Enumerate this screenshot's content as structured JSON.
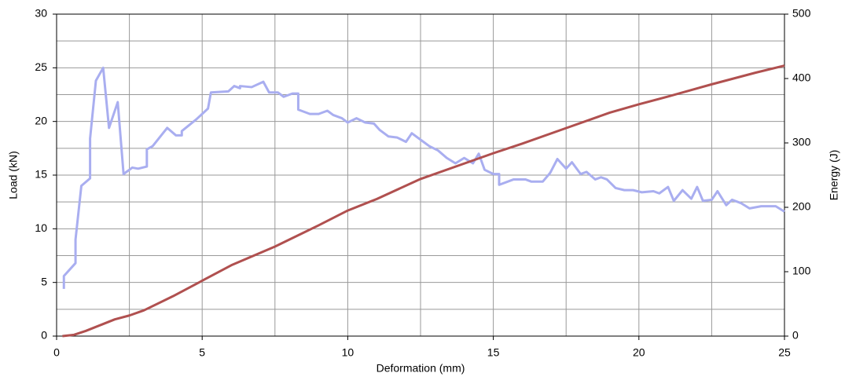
{
  "chart_data": {
    "type": "line",
    "xlabel": "Deformation (mm)",
    "ylabel": "Load (kN)",
    "y2label": "Energy (J)",
    "xlim": [
      0,
      25
    ],
    "xticks": [
      0,
      5,
      10,
      15,
      20,
      25
    ],
    "ylim": [
      0,
      30
    ],
    "yticks": [
      0,
      5,
      10,
      15,
      20,
      25,
      30
    ],
    "y2lim": [
      0,
      500
    ],
    "y2ticks": [
      0,
      100,
      200,
      300,
      400,
      500
    ],
    "grid": true,
    "xminor": [
      2.5,
      7.5,
      12.5,
      17.5,
      22.5
    ],
    "yminor": [
      2.5,
      7.5,
      12.5,
      17.5,
      22.5,
      27.5
    ],
    "series": [
      {
        "name": "Load",
        "color": "#a9aef0",
        "axis": "y",
        "x": [
          0.25,
          0.25,
          0.65,
          0.65,
          0.85,
          1.15,
          1.15,
          1.35,
          1.6,
          1.8,
          2.1,
          2.3,
          2.6,
          2.8,
          3.1,
          3.1,
          3.3,
          3.8,
          4.1,
          4.3,
          4.3,
          4.8,
          5.2,
          5.3,
          5.9,
          6.1,
          6.3,
          6.3,
          6.7,
          7.1,
          7.3,
          7.6,
          7.8,
          8.1,
          8.3,
          8.3,
          8.7,
          9.0,
          9.3,
          9.5,
          9.8,
          10.0,
          10.3,
          10.6,
          10.9,
          11.1,
          11.4,
          11.7,
          12.0,
          12.2,
          12.6,
          12.8,
          13.1,
          13.4,
          13.7,
          14.0,
          14.3,
          14.5,
          14.7,
          15.0,
          15.2,
          15.2,
          15.7,
          16.1,
          16.3,
          16.7,
          16.95,
          17.2,
          17.5,
          17.7,
          18.0,
          18.2,
          18.5,
          18.7,
          18.9,
          19.2,
          19.5,
          19.8,
          20.1,
          20.5,
          20.7,
          21.0,
          21.2,
          21.5,
          21.8,
          22.0,
          22.2,
          22.5,
          22.7,
          23.0,
          23.2,
          23.5,
          23.8,
          24.2,
          24.7,
          25.0
        ],
        "values": [
          4.4,
          5.6,
          6.8,
          9.0,
          14.0,
          14.7,
          18.4,
          23.8,
          25.0,
          19.4,
          21.8,
          15.1,
          15.7,
          15.6,
          15.8,
          17.4,
          17.7,
          19.4,
          18.7,
          18.7,
          19.1,
          20.2,
          21.2,
          22.7,
          22.8,
          23.3,
          23.1,
          23.3,
          23.2,
          23.7,
          22.7,
          22.7,
          22.3,
          22.6,
          22.6,
          21.1,
          20.7,
          20.7,
          21.0,
          20.6,
          20.3,
          19.9,
          20.3,
          19.9,
          19.8,
          19.2,
          18.6,
          18.5,
          18.1,
          18.9,
          18.1,
          17.7,
          17.3,
          16.6,
          16.1,
          16.6,
          16.1,
          17.0,
          15.5,
          15.1,
          15.1,
          14.1,
          14.6,
          14.6,
          14.4,
          14.4,
          15.2,
          16.5,
          15.6,
          16.2,
          15.1,
          15.3,
          14.6,
          14.8,
          14.6,
          13.8,
          13.6,
          13.6,
          13.4,
          13.5,
          13.3,
          13.9,
          12.6,
          13.6,
          12.8,
          13.9,
          12.6,
          12.7,
          13.5,
          12.2,
          12.7,
          12.4,
          11.9,
          12.1,
          12.1,
          11.6
        ]
      },
      {
        "name": "Energy",
        "color": "#b0504f",
        "axis": "y2",
        "x": [
          0.2,
          0.6,
          1.0,
          1.5,
          2.0,
          2.5,
          3.0,
          4.0,
          5.0,
          6.0,
          7.5,
          9.0,
          10.0,
          11.0,
          12.5,
          14.0,
          15.0,
          16.0,
          17.5,
          19.0,
          20.0,
          21.0,
          22.5,
          24.0,
          25.0
        ],
        "values": [
          0,
          2,
          8,
          17,
          26,
          32,
          40,
          62,
          86,
          110,
          139,
          172,
          195,
          213,
          244,
          268,
          284,
          299,
          323,
          347,
          360,
          372,
          391,
          409,
          420
        ]
      }
    ]
  }
}
